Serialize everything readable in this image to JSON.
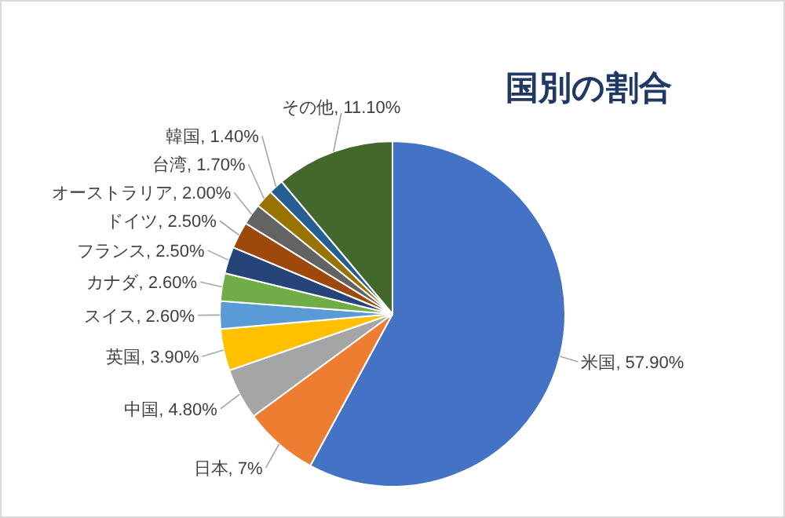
{
  "chart_data": {
    "type": "pie",
    "title": "国別の割合",
    "categories": [
      "米国",
      "日本",
      "中国",
      "英国",
      "スイス",
      "カナダ",
      "フランス",
      "ドイツ",
      "オーストラリア",
      "台湾",
      "韓国",
      "その他"
    ],
    "values": [
      57.9,
      7,
      4.8,
      3.9,
      2.6,
      2.6,
      2.5,
      2.5,
      2.0,
      1.7,
      1.4,
      11.1
    ],
    "value_labels": [
      "57.90%",
      "7%",
      "4.80%",
      "3.90%",
      "2.60%",
      "2.60%",
      "2.50%",
      "2.50%",
      "2.00%",
      "1.70%",
      "1.40%",
      "11.10%"
    ],
    "colors": [
      "#4472c4",
      "#ed7d31",
      "#a5a5a5",
      "#ffc000",
      "#5b9bd5",
      "#70ad47",
      "#264478",
      "#9e480e",
      "#636363",
      "#997300",
      "#255e91",
      "#43682b"
    ]
  }
}
